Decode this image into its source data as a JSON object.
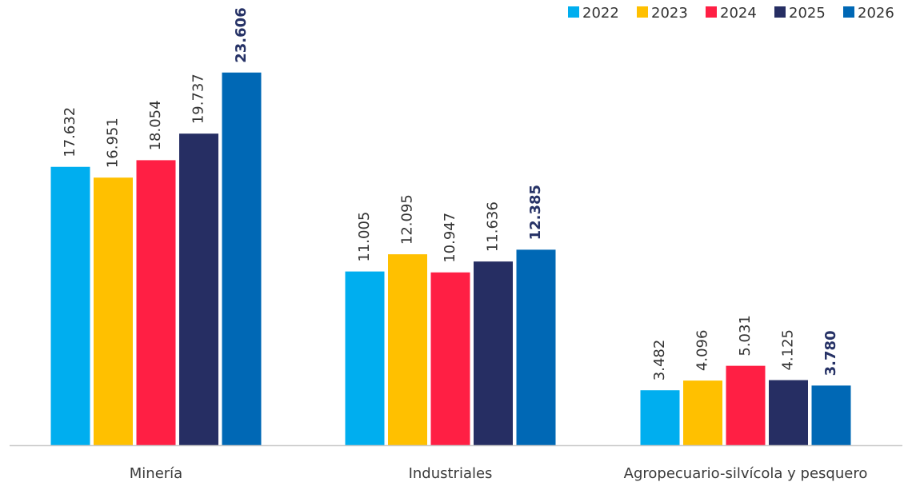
{
  "chart_data": {
    "type": "bar",
    "title": "",
    "xlabel": "",
    "ylabel": "",
    "categories": [
      "Minería",
      "Industriales",
      "Agropecuario-silvícola y pesquero"
    ],
    "series": [
      {
        "name": "2022",
        "values": [
          17.632,
          11.005,
          3.482
        ],
        "labels": [
          "17.632",
          "11.005",
          "3.482"
        ],
        "color": "#00AEEF",
        "bold_labels": false
      },
      {
        "name": "2023",
        "values": [
          16.951,
          12.095,
          4.096
        ],
        "labels": [
          "16.951",
          "12.095",
          "4.096"
        ],
        "color": "#FFC000",
        "bold_labels": false
      },
      {
        "name": "2024",
        "values": [
          18.054,
          10.947,
          5.031
        ],
        "labels": [
          "18.054",
          "10.947",
          "5.031"
        ],
        "color": "#FF1F44",
        "bold_labels": false
      },
      {
        "name": "2025",
        "values": [
          19.737,
          11.636,
          4.125
        ],
        "labels": [
          "19.737",
          "11.636",
          "4.125"
        ],
        "color": "#262E63",
        "bold_labels": false
      },
      {
        "name": "2026",
        "values": [
          23.606,
          12.385,
          3.78
        ],
        "labels": [
          "23.606",
          "12.385",
          "3.780"
        ],
        "color": "#0068B5",
        "bold_labels": true
      }
    ],
    "ylim": [
      0,
      28.2
    ],
    "grid": false,
    "legend_position": "top-right",
    "axis_color": "#C9C9C9"
  }
}
